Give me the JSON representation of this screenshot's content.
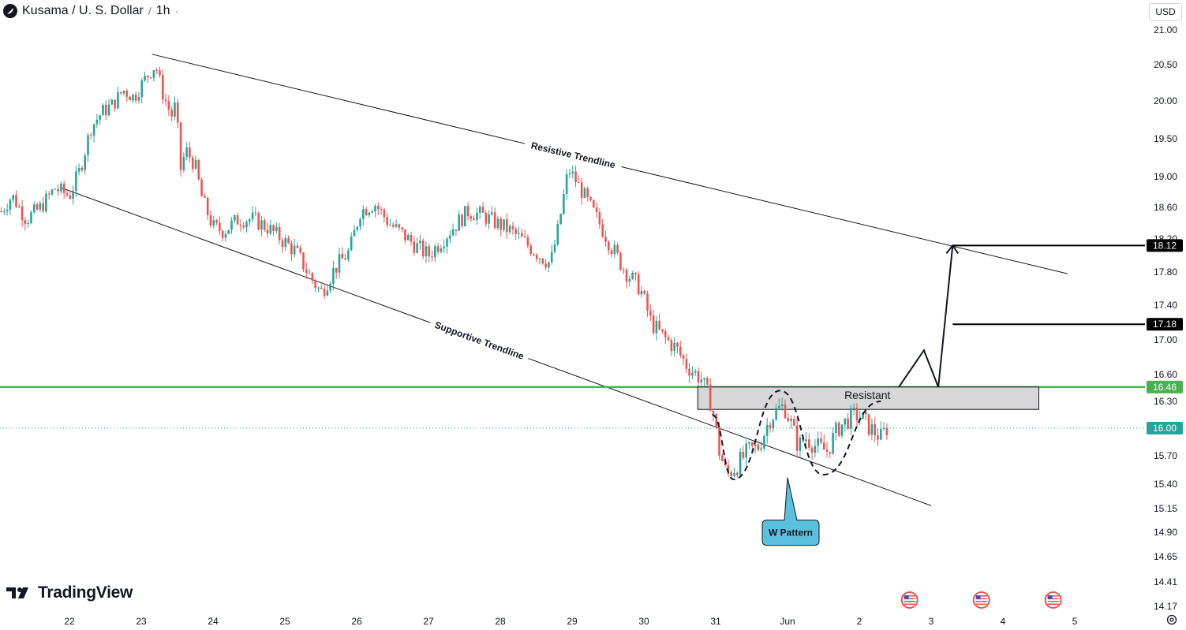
{
  "header": {
    "symbol": "Kusama / U. S. Dollar",
    "interval": "1h",
    "menu_glyph": "·"
  },
  "currency_button": "USD",
  "logo_text": "TradingView",
  "icons": {
    "symbol": "kusama-logo-icon",
    "logo": "tradingview-logo-icon",
    "settings": "gear-icon",
    "events": "us-flag-icon"
  },
  "colors": {
    "up": "#26a69a",
    "down": "#ef5350",
    "support_line": "#4caf50",
    "callout": "#5bc0de",
    "price_tag": "#000000"
  },
  "chart_data": {
    "type": "candlestick",
    "symbol": "Kusama / U. S. Dollar",
    "interval": "1h",
    "y_ticks": [
      21.0,
      20.5,
      20.0,
      19.5,
      19.0,
      18.6,
      18.2,
      17.8,
      17.4,
      17.0,
      16.6,
      16.3,
      15.7,
      15.4,
      15.15,
      14.9,
      14.65,
      14.41,
      14.17
    ],
    "y_tick_labels": [
      "21.00",
      "20.50",
      "20.00",
      "19.50",
      "19.00",
      "18.60",
      "18.20",
      "17.80",
      "17.40",
      "17.00",
      "16.60",
      "16.30",
      "15.70",
      "15.40",
      "15.15",
      "14.90",
      "14.65",
      "14.41",
      "14.17"
    ],
    "x_ticks": [
      {
        "label": "22",
        "index": 0
      },
      {
        "label": "23",
        "index": 1
      },
      {
        "label": "24",
        "index": 2
      },
      {
        "label": "25",
        "index": 3
      },
      {
        "label": "26",
        "index": 4
      },
      {
        "label": "27",
        "index": 5
      },
      {
        "label": "28",
        "index": 6
      },
      {
        "label": "29",
        "index": 7
      },
      {
        "label": "30",
        "index": 8
      },
      {
        "label": "31",
        "index": 9
      },
      {
        "label": "Jun",
        "index": 10
      },
      {
        "label": "2",
        "index": 11
      },
      {
        "label": "3",
        "index": 12
      },
      {
        "label": "4",
        "index": 13
      },
      {
        "label": "5",
        "index": 14
      }
    ],
    "price_path": [
      [
        -0.95,
        18.55
      ],
      [
        -0.8,
        18.75
      ],
      [
        -0.6,
        18.45
      ],
      [
        -0.4,
        18.6
      ],
      [
        -0.2,
        18.85
      ],
      [
        0,
        18.75
      ],
      [
        0.15,
        19.1
      ],
      [
        0.3,
        19.65
      ],
      [
        0.45,
        19.85
      ],
      [
        0.6,
        19.95
      ],
      [
        0.75,
        20.15
      ],
      [
        0.9,
        20.05
      ],
      [
        1.05,
        20.3
      ],
      [
        1.2,
        20.5
      ],
      [
        1.3,
        20.1
      ],
      [
        1.42,
        19.8
      ],
      [
        1.48,
        19.95
      ],
      [
        1.55,
        19.1
      ],
      [
        1.62,
        19.35
      ],
      [
        1.75,
        19.15
      ],
      [
        1.85,
        18.7
      ],
      [
        2.0,
        18.35
      ],
      [
        2.15,
        18.3
      ],
      [
        2.35,
        18.45
      ],
      [
        2.55,
        18.45
      ],
      [
        2.75,
        18.35
      ],
      [
        2.95,
        18.2
      ],
      [
        3.15,
        18.05
      ],
      [
        3.35,
        17.75
      ],
      [
        3.5,
        17.55
      ],
      [
        3.7,
        17.85
      ],
      [
        3.9,
        18.05
      ],
      [
        4.05,
        18.55
      ],
      [
        4.25,
        18.65
      ],
      [
        4.45,
        18.4
      ],
      [
        4.65,
        18.25
      ],
      [
        4.85,
        18.1
      ],
      [
        5.0,
        18.0
      ],
      [
        5.15,
        18.15
      ],
      [
        5.35,
        18.35
      ],
      [
        5.55,
        18.55
      ],
      [
        5.75,
        18.5
      ],
      [
        5.95,
        18.4
      ],
      [
        6.15,
        18.3
      ],
      [
        6.35,
        18.15
      ],
      [
        6.55,
        18.0
      ],
      [
        6.7,
        17.9
      ],
      [
        6.8,
        18.3
      ],
      [
        6.95,
        19.1
      ],
      [
        7.05,
        18.95
      ],
      [
        7.2,
        18.7
      ],
      [
        7.35,
        18.45
      ],
      [
        7.55,
        18.1
      ],
      [
        7.75,
        17.8
      ],
      [
        7.95,
        17.6
      ],
      [
        8.1,
        17.2
      ],
      [
        8.25,
        17.05
      ],
      [
        8.45,
        16.9
      ],
      [
        8.6,
        16.7
      ],
      [
        8.8,
        16.55
      ],
      [
        8.95,
        16.25
      ],
      [
        9.05,
        15.75
      ],
      [
        9.15,
        15.5
      ],
      [
        9.3,
        15.6
      ],
      [
        9.45,
        15.75
      ],
      [
        9.6,
        15.8
      ],
      [
        9.75,
        16.1
      ],
      [
        9.85,
        16.2
      ],
      [
        9.95,
        16.25
      ],
      [
        10.05,
        16.05
      ],
      [
        10.15,
        15.8
      ],
      [
        10.25,
        15.9
      ],
      [
        10.4,
        15.8
      ],
      [
        10.55,
        15.75
      ],
      [
        10.7,
        16.0
      ],
      [
        10.85,
        16.1
      ],
      [
        10.95,
        16.15
      ],
      [
        11.05,
        16.1
      ],
      [
        11.15,
        16.0
      ],
      [
        11.3,
        15.9
      ],
      [
        11.4,
        16.02
      ]
    ],
    "current_price": 16.0,
    "price_tags": [
      "18.12",
      "17.18",
      "16.46",
      "16.00"
    ],
    "levels": [
      {
        "label": "18.12",
        "value": 18.12,
        "color": "#000000",
        "from_index": 12.3
      },
      {
        "label": "17.18",
        "value": 17.18,
        "color": "#000000",
        "from_index": 12.3
      },
      {
        "label": "16.46",
        "value": 16.46,
        "color": "#4caf50",
        "from_index": -1
      }
    ],
    "zone": {
      "label": "Resistant",
      "from_index": 8.75,
      "to_index": 13.5,
      "low": 16.21,
      "high": 16.46
    },
    "trendlines": [
      {
        "label": "Resistive Trendline",
        "from": [
          1.15,
          20.65
        ],
        "to": [
          13.9,
          17.78
        ]
      },
      {
        "label": "Supportive Trendline",
        "from": [
          -0.1,
          18.85
        ],
        "to": [
          12.0,
          15.18
        ]
      }
    ],
    "projection_path": [
      [
        11.55,
        16.46
      ],
      [
        11.9,
        16.88
      ],
      [
        12.1,
        16.46
      ],
      [
        12.3,
        18.12
      ]
    ],
    "w_pattern": {
      "points": [
        [
          8.95,
          16.15
        ],
        [
          9.25,
          15.45
        ],
        [
          9.9,
          16.42
        ],
        [
          10.5,
          15.5
        ],
        [
          11.3,
          16.3
        ]
      ],
      "callout": "W Pattern",
      "callout_anchor": [
        10.0,
        15.25
      ]
    },
    "event_markers": [
      11.7,
      12.7,
      13.7
    ]
  }
}
